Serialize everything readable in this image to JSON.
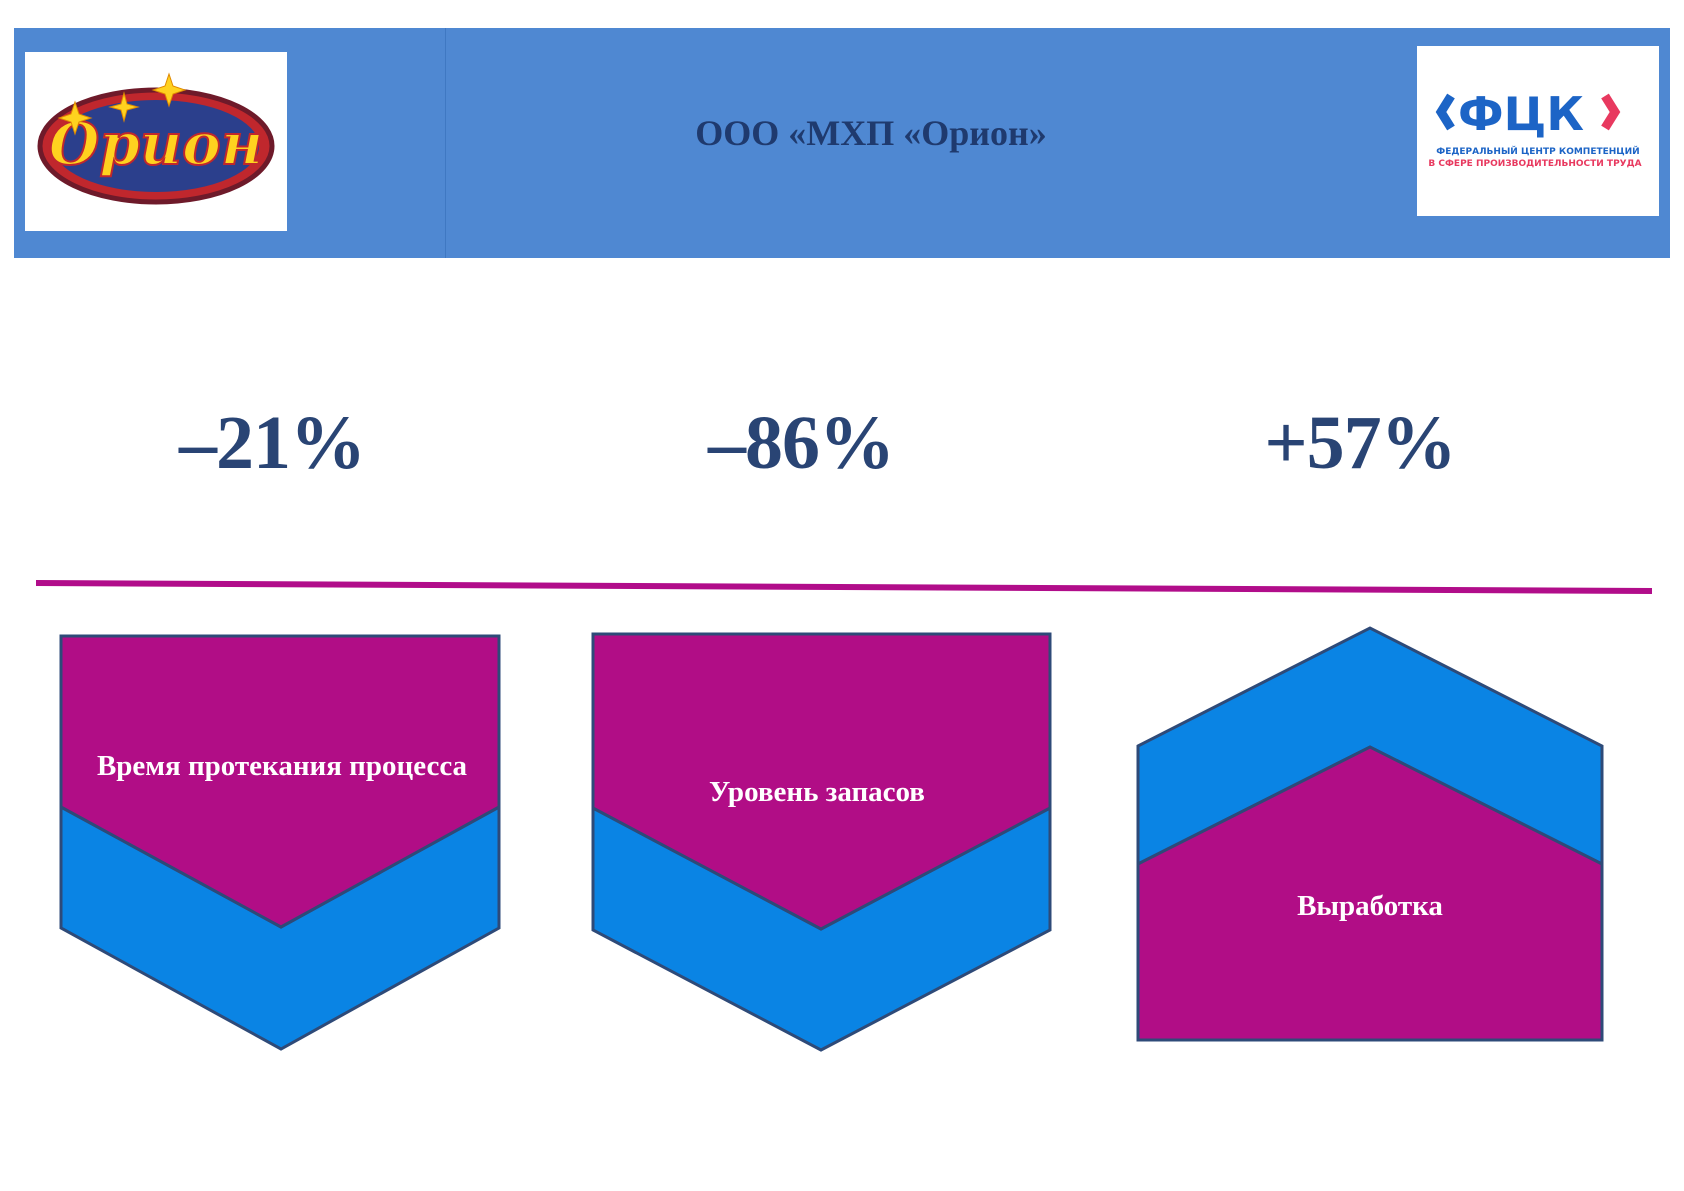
{
  "header": {
    "title": "ООО «МХП «Орион»",
    "logo_left": {
      "icon": "orion-logo",
      "text": "Орион"
    },
    "logo_right": {
      "icon": "fck-logo",
      "text": "ФЦК",
      "subtitle_1": "ФЕДЕРАЛЬНЫЙ ЦЕНТР КОМПЕТЕНЦИЙ",
      "subtitle_2": "В СФЕРЕ ПРОИЗВОДИТЕЛЬНОСТИ ТРУДА"
    }
  },
  "metrics": [
    {
      "value": "–21%",
      "label": "Время протекания процесса",
      "direction": "down"
    },
    {
      "value": "–86%",
      "label": "Уровень запасов",
      "direction": "down"
    },
    {
      "value": "+57%",
      "label": "Выработка",
      "direction": "up"
    }
  ],
  "colors": {
    "header_bg": "#4f88d2",
    "title_text": "#1f3a6e",
    "metric_text": "#294474",
    "divider": "#b10d8a",
    "magenta": "#b10d86",
    "blue": "#0a84e4",
    "outline": "#2e4a78"
  }
}
